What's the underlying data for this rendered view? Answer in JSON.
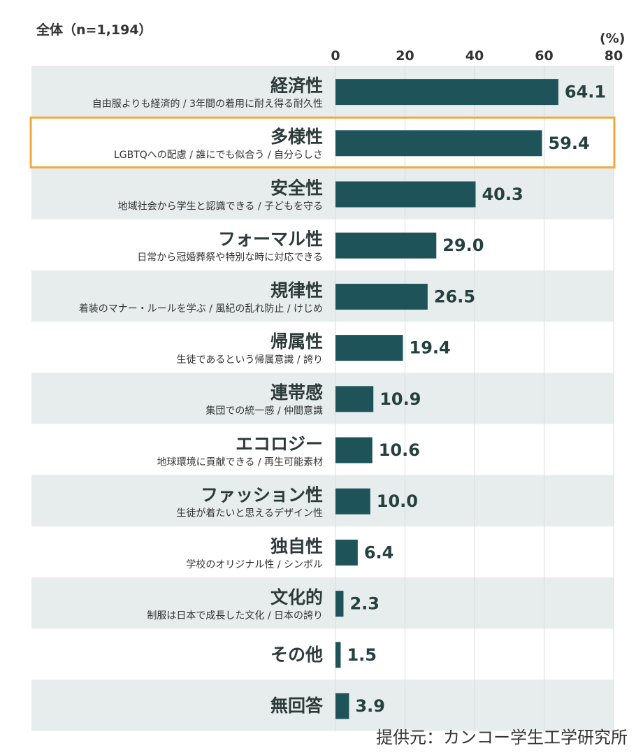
{
  "subtitle": "全体（n=1,194）",
  "unit": "(%)",
  "source": "提供元：カンコー学生工学研究所",
  "colors": {
    "bar": "#1e5459",
    "band": "#e7ecec",
    "highlight": "#f3a83b",
    "grid": "#d8dcdc",
    "text": "#333333"
  },
  "chart_data": {
    "type": "bar",
    "orientation": "horizontal",
    "xlim": [
      0,
      80
    ],
    "ticks": [
      0,
      20,
      40,
      60,
      80
    ],
    "grid": true,
    "highlighted_index": 1,
    "categories": [
      {
        "label": "経済性",
        "desc": "自由服よりも経済的 / 3年間の着用に耐え得る耐久性",
        "value": 64.1,
        "value_text": "64.1"
      },
      {
        "label": "多様性",
        "desc": "LGBTQへの配慮 / 誰にでも似合う / 自分らしさ",
        "value": 59.4,
        "value_text": "59.4"
      },
      {
        "label": "安全性",
        "desc": "地域社会から学生と認識できる / 子どもを守る",
        "value": 40.3,
        "value_text": "40.3"
      },
      {
        "label": "フォーマル性",
        "desc": "日常から冠婚葬祭や特別な時に対応できる",
        "value": 29.0,
        "value_text": "29.0"
      },
      {
        "label": "規律性",
        "desc": "着装のマナー・ルールを学ぶ / 風紀の乱れ防止 / けじめ",
        "value": 26.5,
        "value_text": "26.5"
      },
      {
        "label": "帰属性",
        "desc": "生徒であるという帰属意識 / 誇り",
        "value": 19.4,
        "value_text": "19.4"
      },
      {
        "label": "連帯感",
        "desc": "集団での統一感 / 仲間意識",
        "value": 10.9,
        "value_text": "10.9"
      },
      {
        "label": "エコロジー",
        "desc": "地球環境に貢献できる / 再生可能素材",
        "value": 10.6,
        "value_text": "10.6"
      },
      {
        "label": "ファッション性",
        "desc": "生徒が着たいと思えるデザイン性",
        "value": 10.0,
        "value_text": "10.0"
      },
      {
        "label": "独自性",
        "desc": "学校のオリジナル性 / シンボル",
        "value": 6.4,
        "value_text": "6.4"
      },
      {
        "label": "文化的",
        "desc": "制服は日本で成長した文化 / 日本の誇り",
        "value": 2.3,
        "value_text": "2.3"
      },
      {
        "label": "その他",
        "desc": "",
        "value": 1.5,
        "value_text": "1.5"
      },
      {
        "label": "無回答",
        "desc": "",
        "value": 3.9,
        "value_text": "3.9"
      }
    ]
  }
}
